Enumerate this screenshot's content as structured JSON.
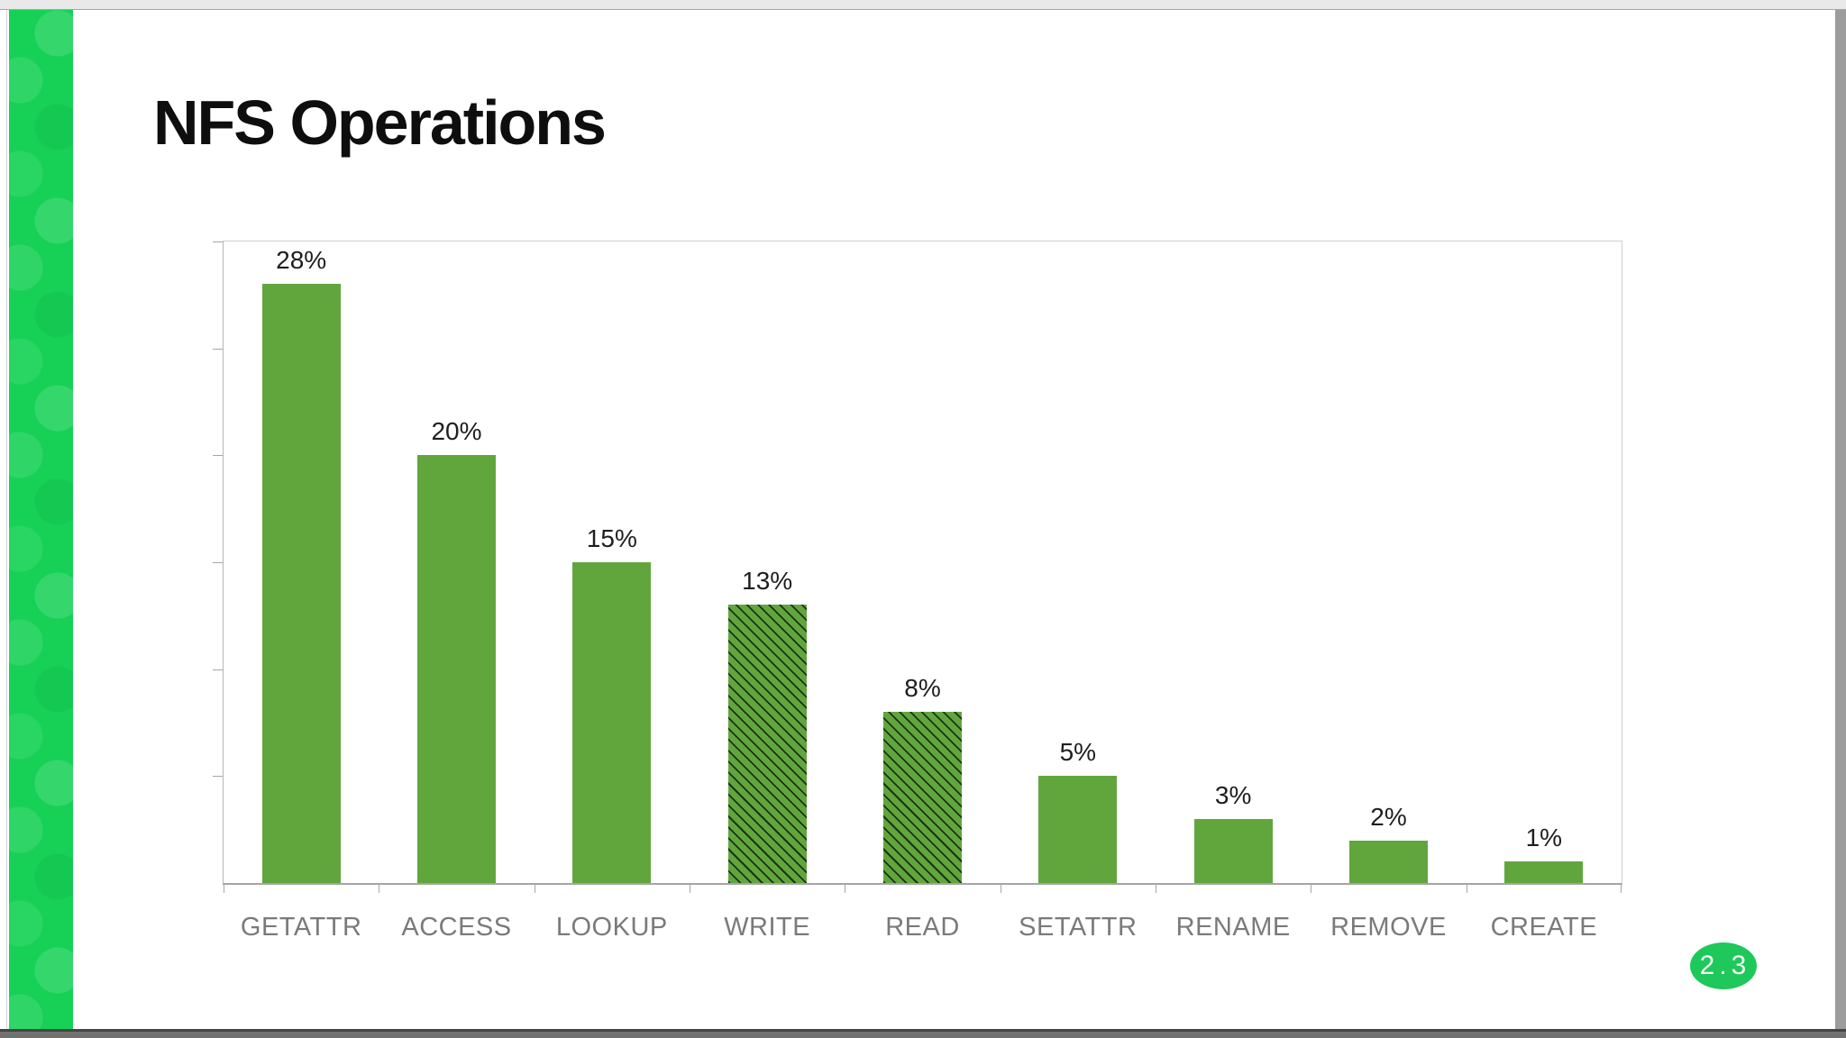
{
  "slide": {
    "title": "NFS Operations",
    "version_badge": "2.3"
  },
  "colors": {
    "bar": "#61a63d",
    "stripe": "#17d156",
    "badge": "#1ec85a"
  },
  "chart_data": {
    "type": "bar",
    "title": "NFS Operations",
    "categories": [
      "GETATTR",
      "ACCESS",
      "LOOKUP",
      "WRITE",
      "READ",
      "SETATTR",
      "RENAME",
      "REMOVE",
      "CREATE"
    ],
    "values": [
      28,
      20,
      15,
      13,
      8,
      5,
      3,
      2,
      1
    ],
    "value_labels": [
      "28%",
      "20%",
      "15%",
      "13%",
      "8%",
      "5%",
      "3%",
      "2%",
      "1%"
    ],
    "hatched": [
      false,
      false,
      false,
      true,
      true,
      false,
      false,
      false,
      false
    ],
    "xlabel": "",
    "ylabel": "",
    "ylim": [
      0,
      30
    ],
    "ytick_step": 5,
    "grid": false,
    "legend": "none",
    "bar_color": "#61a63d",
    "hatch_style": "black-diagonal-backslash"
  }
}
